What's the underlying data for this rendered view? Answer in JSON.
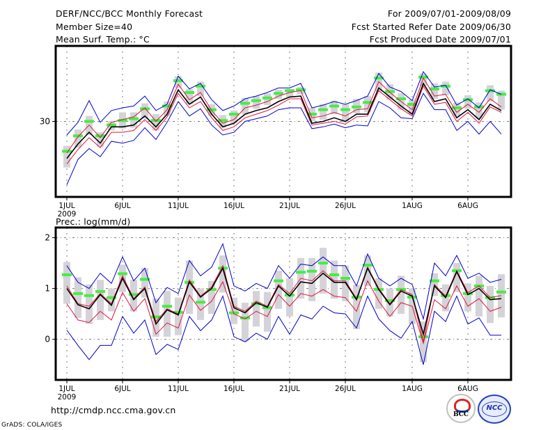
{
  "header": {
    "title": "DERF/NCC/BCC Monthly Forecast",
    "member_size": "Member Size=40",
    "variable": "Mean Surf. Temp.: °C",
    "period": "For 2009/07/01-2009/08/09",
    "start_date": "Fcst Started Refer Date 2009/06/30",
    "produced_date": "Fcst Produced Date 2009/07/01"
  },
  "footer": {
    "url": "http://cmdp.ncc.cma.gov.cn",
    "credit": "GrADS: COLA/IGES",
    "logos": [
      "BCC",
      "NCC"
    ]
  },
  "colors": {
    "mean": "#000000",
    "spread": "#e0143c",
    "envelope": "#0000cc",
    "marker": "#44ee44",
    "box": "#d3d3d8",
    "grid": "#777777"
  },
  "chart_data": [
    {
      "type": "line",
      "title": "Mean Surf. Temp.: °C",
      "xlabel": "",
      "ylabel": "",
      "x_ticks": [
        {
          "day": 1,
          "label": "1JUL",
          "sub": "2009"
        },
        {
          "day": 6,
          "label": "6JUL"
        },
        {
          "day": 11,
          "label": "11JUL"
        },
        {
          "day": 16,
          "label": "16JUL"
        },
        {
          "day": 21,
          "label": "21JUL"
        },
        {
          "day": 26,
          "label": "26JUL"
        },
        {
          "day": 32,
          "label": "1AUG"
        },
        {
          "day": 37,
          "label": "6AUG"
        }
      ],
      "y_ticks": [
        30
      ],
      "ylim": [
        21.65,
        38.35
      ],
      "xlim": [
        0,
        41
      ],
      "grid": true,
      "days": [
        1,
        2,
        3,
        4,
        5,
        6,
        7,
        8,
        9,
        10,
        11,
        12,
        13,
        14,
        15,
        16,
        17,
        18,
        19,
        20,
        21,
        22,
        23,
        24,
        25,
        26,
        27,
        28,
        29,
        30,
        31,
        32,
        33,
        34,
        35,
        36,
        37,
        38,
        39,
        40
      ],
      "series": [
        {
          "name": "mean",
          "values": [
            25.9,
            27.5,
            28.8,
            27.6,
            29.4,
            29.4,
            29.6,
            30.6,
            29.4,
            30.8,
            33.5,
            31.9,
            32.7,
            30.8,
            29.4,
            29.8,
            30.8,
            31.2,
            31.5,
            32.2,
            32.7,
            32.8,
            29.8,
            30.0,
            30.4,
            30.0,
            30.8,
            30.8,
            33.7,
            32.7,
            31.7,
            30.8,
            34.2,
            32.2,
            32.5,
            30.4,
            31.3,
            30.2,
            31.9,
            31.2
          ]
        },
        {
          "name": "upper_spread",
          "values": [
            26.5,
            28.3,
            29.6,
            28.2,
            29.9,
            30.2,
            30.5,
            31.5,
            30.0,
            31.3,
            34.1,
            32.4,
            33.2,
            31.2,
            29.8,
            30.2,
            31.5,
            31.8,
            32.2,
            32.8,
            33.2,
            33.4,
            30.4,
            30.6,
            31.0,
            30.6,
            31.3,
            31.4,
            34.4,
            33.2,
            32.2,
            31.3,
            34.8,
            32.8,
            33.0,
            31.0,
            31.9,
            31.0,
            32.5,
            31.6
          ]
        },
        {
          "name": "lower_spread",
          "values": [
            25.3,
            26.9,
            28.2,
            27.1,
            28.8,
            28.8,
            29.0,
            30.2,
            29.0,
            30.5,
            33.1,
            31.5,
            32.2,
            30.4,
            29.0,
            29.4,
            30.4,
            30.8,
            31.2,
            31.8,
            32.5,
            32.5,
            29.6,
            29.8,
            30.0,
            29.7,
            30.5,
            30.6,
            33.4,
            32.4,
            31.4,
            30.6,
            33.9,
            31.9,
            32.1,
            30.0,
            31.0,
            29.8,
            31.6,
            31.0
          ]
        },
        {
          "name": "max",
          "values": [
            28.5,
            29.9,
            32.3,
            29.9,
            31.2,
            31.5,
            31.7,
            32.8,
            31.2,
            31.9,
            35.0,
            33.6,
            34.2,
            32.4,
            31.2,
            31.7,
            32.5,
            32.8,
            33.2,
            33.7,
            33.7,
            34.2,
            31.5,
            31.8,
            32.2,
            31.9,
            32.3,
            32.8,
            35.3,
            33.8,
            33.3,
            32.3,
            35.5,
            33.8,
            34.0,
            31.8,
            32.5,
            31.5,
            33.5,
            33.0
          ]
        },
        {
          "name": "min",
          "values": [
            23.0,
            25.8,
            27.0,
            26.1,
            27.8,
            27.6,
            27.9,
            29.3,
            28.0,
            29.9,
            32.2,
            30.6,
            31.4,
            29.6,
            28.5,
            28.8,
            30.0,
            30.3,
            30.6,
            31.3,
            31.5,
            31.5,
            29.2,
            29.4,
            29.7,
            29.3,
            29.6,
            29.5,
            32.2,
            31.5,
            30.4,
            30.3,
            33.1,
            31.3,
            31.3,
            29.0,
            30.0,
            28.6,
            30.0,
            28.6
          ]
        },
        {
          "name": "marker",
          "values": [
            26.7,
            28.4,
            30.0,
            28.4,
            29.6,
            30.1,
            30.3,
            31.4,
            30.1,
            31.7,
            34.5,
            33.2,
            33.9,
            31.3,
            30.1,
            30.8,
            32.0,
            32.3,
            32.6,
            33.1,
            33.4,
            33.5,
            30.8,
            31.3,
            31.7,
            31.3,
            31.6,
            32.1,
            34.8,
            33.3,
            32.5,
            31.9,
            34.9,
            33.6,
            33.9,
            31.5,
            32.4,
            31.6,
            33.4,
            33.0
          ]
        },
        {
          "name": "box_top",
          "values": [
            27.3,
            29.1,
            30.6,
            28.8,
            30.0,
            31.0,
            31.0,
            32.0,
            30.8,
            32.2,
            35.0,
            33.6,
            34.4,
            31.9,
            30.7,
            31.2,
            32.6,
            32.8,
            33.1,
            33.5,
            33.6,
            33.8,
            31.5,
            31.9,
            32.3,
            31.9,
            32.5,
            32.8,
            35.4,
            34.1,
            33.1,
            32.4,
            35.3,
            34.2,
            34.4,
            32.1,
            32.9,
            32.1,
            34.0,
            33.4
          ]
        },
        {
          "name": "box_bottom",
          "values": [
            24.9,
            27.1,
            28.5,
            27.2,
            29.0,
            29.2,
            29.3,
            30.3,
            29.0,
            30.6,
            33.7,
            31.9,
            32.8,
            30.6,
            29.3,
            29.8,
            30.8,
            31.4,
            31.8,
            32.5,
            32.7,
            33.0,
            30.0,
            30.2,
            30.8,
            29.9,
            30.9,
            31.0,
            33.3,
            32.4,
            31.3,
            30.8,
            33.9,
            32.5,
            32.9,
            30.6,
            31.4,
            30.3,
            32.2,
            31.3
          ]
        }
      ]
    },
    {
      "type": "line",
      "title": "Prec.: log(mm/d)",
      "xlabel": "",
      "ylabel": "",
      "x_ticks": [
        {
          "day": 1,
          "label": "1JUL",
          "sub": "2009"
        },
        {
          "day": 6,
          "label": "6JUL"
        },
        {
          "day": 11,
          "label": "11JUL"
        },
        {
          "day": 16,
          "label": "16JUL"
        },
        {
          "day": 21,
          "label": "21JUL"
        },
        {
          "day": 26,
          "label": "26JUL"
        },
        {
          "day": 32,
          "label": "1AUG"
        },
        {
          "day": 37,
          "label": "6AUG"
        }
      ],
      "y_ticks": [
        0,
        1,
        2
      ],
      "ylim": [
        -0.8,
        2.2
      ],
      "xlim": [
        0,
        41
      ],
      "grid": true,
      "days": [
        1,
        2,
        3,
        4,
        5,
        6,
        7,
        8,
        9,
        10,
        11,
        12,
        13,
        14,
        15,
        16,
        17,
        18,
        19,
        20,
        21,
        22,
        23,
        24,
        25,
        26,
        27,
        28,
        29,
        30,
        31,
        32,
        33,
        34,
        35,
        36,
        37,
        38,
        39,
        40
      ],
      "series": [
        {
          "name": "mean",
          "values": [
            1.0,
            0.68,
            0.6,
            0.88,
            0.67,
            1.2,
            0.78,
            1.0,
            0.3,
            0.58,
            0.48,
            1.13,
            0.83,
            1.0,
            1.4,
            0.62,
            0.52,
            0.72,
            0.63,
            1.05,
            0.85,
            1.13,
            1.1,
            1.3,
            1.12,
            1.12,
            0.78,
            1.4,
            0.98,
            0.68,
            0.95,
            0.85,
            0.1,
            1.05,
            0.82,
            1.33,
            0.88,
            1.0,
            0.78,
            0.8
          ]
        },
        {
          "name": "upper_spread",
          "values": [
            1.05,
            0.7,
            0.65,
            0.9,
            0.7,
            1.25,
            0.8,
            1.03,
            0.35,
            0.6,
            0.5,
            1.17,
            0.85,
            1.03,
            1.45,
            0.65,
            0.55,
            0.75,
            0.65,
            1.08,
            0.9,
            1.2,
            1.15,
            1.35,
            1.15,
            1.15,
            0.8,
            1.42,
            1.0,
            0.7,
            0.98,
            0.88,
            -0.05,
            1.08,
            0.85,
            1.35,
            0.92,
            1.05,
            0.82,
            0.86
          ]
        },
        {
          "name": "lower_spread",
          "values": [
            0.7,
            0.38,
            0.33,
            0.55,
            0.38,
            0.92,
            0.55,
            0.8,
            0.1,
            0.32,
            0.22,
            0.87,
            0.57,
            0.75,
            1.13,
            0.5,
            0.4,
            0.55,
            0.45,
            0.88,
            0.65,
            0.9,
            0.85,
            0.98,
            0.85,
            0.82,
            0.55,
            1.15,
            0.75,
            0.45,
            0.72,
            0.65,
            -0.08,
            0.78,
            0.6,
            1.05,
            0.65,
            0.8,
            0.55,
            0.63
          ]
        },
        {
          "name": "max",
          "values": [
            1.45,
            1.12,
            1.0,
            1.3,
            1.1,
            1.62,
            1.15,
            1.4,
            0.72,
            1.02,
            0.9,
            1.55,
            1.25,
            1.42,
            1.88,
            1.05,
            0.95,
            1.1,
            1.0,
            1.45,
            1.2,
            1.48,
            1.45,
            1.62,
            1.45,
            1.45,
            1.05,
            1.68,
            1.2,
            1.05,
            1.2,
            1.08,
            0.4,
            1.5,
            1.25,
            1.65,
            1.2,
            1.3,
            1.12,
            1.18
          ]
        },
        {
          "name": "min",
          "values": [
            0.18,
            -0.12,
            -0.4,
            -0.12,
            -0.12,
            0.45,
            0.12,
            0.38,
            -0.3,
            -0.1,
            -0.2,
            0.45,
            0.17,
            0.38,
            0.85,
            0.05,
            -0.05,
            0.12,
            0.0,
            0.45,
            0.1,
            0.48,
            0.4,
            0.65,
            0.52,
            0.5,
            0.22,
            0.85,
            0.4,
            0.17,
            0.02,
            0.35,
            -0.5,
            0.55,
            0.35,
            0.85,
            0.3,
            0.42,
            0.08,
            0.08
          ]
        },
        {
          "name": "marker",
          "values": [
            1.27,
            0.9,
            0.86,
            0.94,
            0.82,
            1.29,
            0.88,
            1.18,
            0.44,
            0.65,
            0.53,
            1.12,
            0.73,
            0.98,
            1.4,
            0.52,
            0.42,
            0.7,
            0.62,
            1.15,
            0.87,
            1.32,
            1.34,
            1.5,
            1.27,
            1.2,
            0.83,
            1.46,
            0.98,
            0.76,
            0.98,
            0.83,
            0.05,
            1.15,
            0.86,
            1.35,
            0.9,
            1.05,
            0.82,
            0.93
          ]
        },
        {
          "name": "box_top",
          "values": [
            1.52,
            1.22,
            1.08,
            1.17,
            1.0,
            1.47,
            1.17,
            1.4,
            0.8,
            0.95,
            0.82,
            1.55,
            1.0,
            1.15,
            1.65,
            0.82,
            0.72,
            0.95,
            0.93,
            1.35,
            1.2,
            1.6,
            1.6,
            1.8,
            1.55,
            1.45,
            1.07,
            1.65,
            1.2,
            1.0,
            1.25,
            1.0,
            0.35,
            1.3,
            1.08,
            1.5,
            1.1,
            1.25,
            1.05,
            1.28
          ]
        },
        {
          "name": "box_bottom",
          "values": [
            0.7,
            0.42,
            0.3,
            0.38,
            0.55,
            0.93,
            0.55,
            0.82,
            0.05,
            0.05,
            0.08,
            0.5,
            0.38,
            0.5,
            0.92,
            0.3,
            -0.05,
            0.25,
            0.15,
            0.6,
            0.45,
            0.8,
            0.75,
            0.9,
            0.8,
            0.75,
            0.2,
            1.05,
            0.6,
            0.45,
            0.5,
            0.3,
            -0.45,
            0.85,
            0.55,
            0.93,
            0.55,
            0.45,
            0.32,
            0.43
          ]
        }
      ]
    }
  ]
}
